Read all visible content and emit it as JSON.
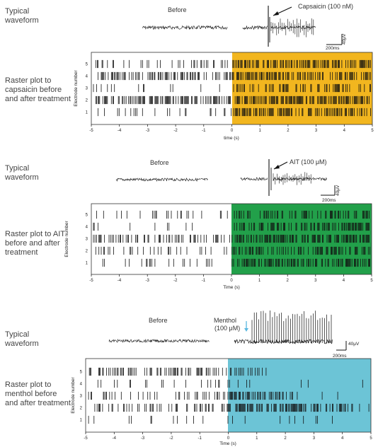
{
  "panels": [
    {
      "typical_label": "Typical\nwaveform",
      "raster_label": "Raster plot to\ncapsaicin before\nand after treatment",
      "before_label": "Before",
      "agent_label": "Capsaicin (100 nM)",
      "scale_time": "200ms",
      "scale_volt": "40μV",
      "ylabel": "Electrode number",
      "xlabel": "time (s)",
      "color": "#F2B61F",
      "xticks": [
        "-5",
        "-4",
        "-3",
        "-2",
        "-1",
        "0",
        "1",
        "2",
        "3",
        "4",
        "5"
      ],
      "electrodes": [
        "5",
        "4",
        "3",
        "2",
        "1"
      ]
    },
    {
      "typical_label": "Typical\nwaveform",
      "raster_label": "Raster plot to AIT\nbefore and after\ntreatment",
      "before_label": "Before",
      "agent_label": "AIT (100 μM)",
      "scale_time": "200ms",
      "scale_volt": "40μV",
      "ylabel": "Electrode number",
      "xlabel": "Time (s)",
      "color": "#22A04A",
      "xticks": [
        "-5",
        "-4",
        "-3",
        "-2",
        "-1",
        "0",
        "1",
        "2",
        "3",
        "4",
        "5"
      ],
      "electrodes": [
        "5",
        "4",
        "3",
        "2",
        "1"
      ]
    },
    {
      "typical_label": "Typical\nwaveform",
      "raster_label": "Raster plot to\nmenthol before\nand after treatment",
      "before_label": "Before",
      "agent_label": "Menthol\n(100 μM)",
      "scale_time": "200ms",
      "scale_volt": "40μV",
      "ylabel": "Electrode number",
      "xlabel": "Time (s)",
      "color": "#6CC4D6",
      "xticks": [
        "-5",
        "-4",
        "-3",
        "-2",
        "-1",
        "0",
        "1",
        "2",
        "3",
        "4",
        "5"
      ],
      "electrodes": [
        "5",
        "4",
        "3",
        "2",
        "1"
      ]
    }
  ]
}
